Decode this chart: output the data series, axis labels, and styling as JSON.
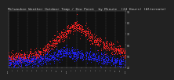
{
  "title": "Milwaukee Weather Outdoor Temp / Dew Point  by Minute  (24 Hours) (Alternate)",
  "title_fontsize": 3.2,
  "bg_color": "#222222",
  "plot_bg_color": "#111111",
  "temp_color": "#ff2222",
  "dew_color": "#2222ff",
  "grid_color": "#666666",
  "text_color": "#cccccc",
  "ylim": [
    40,
    90
  ],
  "xlim": [
    0,
    1440
  ],
  "ytick_values": [
    40,
    50,
    60,
    70,
    80,
    90
  ],
  "ytick_labels": [
    "40",
    "50",
    "60",
    "70",
    "80",
    "90"
  ],
  "vgrid_positions": [
    0,
    120,
    240,
    360,
    480,
    600,
    720,
    840,
    960,
    1080,
    1200,
    1320,
    1440
  ],
  "xtick_positions": [
    0,
    60,
    120,
    180,
    240,
    300,
    360,
    420,
    480,
    540,
    600,
    660,
    720,
    780,
    840,
    900,
    960,
    1020,
    1080,
    1140,
    1200,
    1260,
    1320,
    1380,
    1440
  ],
  "xtick_labels": [
    "12a",
    "1",
    "2",
    "3",
    "4",
    "5",
    "6",
    "7",
    "8",
    "9",
    "10",
    "11",
    "12p",
    "1",
    "2",
    "3",
    "4",
    "5",
    "6",
    "7",
    "8",
    "9",
    "10",
    "11",
    "12a"
  ],
  "seed": 99
}
